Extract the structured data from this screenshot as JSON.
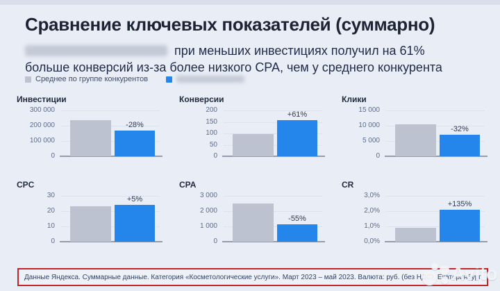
{
  "page": {
    "title": "Сравнение ключевых показателей (суммарно)",
    "subtitle_line1": "при меньших инвестициях получил на 61%",
    "subtitle_line2": "больше конверсий из-за более низкого CPA, чем у среднего конкурента",
    "advertiser_name_redacted": true
  },
  "legend": {
    "competitor_label": "Среднее по группе конкурентов",
    "advertiser_label_redacted": true
  },
  "colors": {
    "background": "#e9edf5",
    "competitor_bar": "#bcc2d0",
    "advertiser_bar": "#2485eb",
    "footer_border_red": "#c2262b",
    "title_text": "#1c2334"
  },
  "chart_data": [
    {
      "type": "bar",
      "id": "investments",
      "title": "Инвестиции",
      "series": [
        {
          "name": "competitor",
          "values": [
            235000
          ]
        },
        {
          "name": "advertiser",
          "values": [
            170000
          ]
        }
      ],
      "delta_label": "-28%",
      "ylim": [
        0,
        300000
      ],
      "ytick_labels": [
        "300 000",
        "200 000",
        "100 000",
        "0"
      ],
      "grid": true,
      "legend_position": "top-left"
    },
    {
      "type": "bar",
      "id": "conversions",
      "title": "Конверсии",
      "series": [
        {
          "name": "competitor",
          "values": [
            98
          ]
        },
        {
          "name": "advertiser",
          "values": [
            158
          ]
        }
      ],
      "delta_label": "+61%",
      "ylim": [
        0,
        200
      ],
      "ytick_labels": [
        "200",
        "150",
        "100",
        "50",
        "0"
      ],
      "grid": true,
      "legend_position": "top-left"
    },
    {
      "type": "bar",
      "id": "clicks",
      "title": "Клики",
      "series": [
        {
          "name": "competitor",
          "values": [
            10400
          ]
        },
        {
          "name": "advertiser",
          "values": [
            7100
          ]
        }
      ],
      "delta_label": "-32%",
      "ylim": [
        0,
        15000
      ],
      "ytick_labels": [
        "15 000",
        "10 000",
        "5 000",
        "0"
      ],
      "grid": true,
      "legend_position": "top-left"
    },
    {
      "type": "bar",
      "id": "cpc",
      "title": "CPC",
      "series": [
        {
          "name": "competitor",
          "values": [
            23
          ]
        },
        {
          "name": "advertiser",
          "values": [
            24.2
          ]
        }
      ],
      "delta_label": "+5%",
      "ylim": [
        0,
        30
      ],
      "ytick_labels": [
        "30",
        "20",
        "10",
        "0"
      ],
      "grid": true,
      "legend_position": "top-left"
    },
    {
      "type": "bar",
      "id": "cpa",
      "title": "CPA",
      "series": [
        {
          "name": "competitor",
          "values": [
            2500
          ]
        },
        {
          "name": "advertiser",
          "values": [
            1125
          ]
        }
      ],
      "delta_label": "-55%",
      "ylim": [
        0,
        3000
      ],
      "ytick_labels": [
        "3 000",
        "2 000",
        "1 000",
        "0"
      ],
      "grid": true,
      "legend_position": "top-left"
    },
    {
      "type": "bar",
      "id": "cr",
      "title": "CR",
      "series": [
        {
          "name": "competitor",
          "values": [
            0.9
          ]
        },
        {
          "name": "advertiser",
          "values": [
            2.1
          ]
        }
      ],
      "delta_label": "+135%",
      "ylim": [
        0,
        3
      ],
      "ytick_labels": [
        "3,0%",
        "2,0%",
        "1,0%",
        "0,0%"
      ],
      "grid": true,
      "legend_position": "top-left"
    }
  ],
  "footer": {
    "note": "Данные Яндекса. Суммарные данные. Категория «Косметологические услуги». Март 2023 – май 2023. Валюта: руб. (без НДС). Екатеринбург",
    "watermark": "Avito"
  }
}
